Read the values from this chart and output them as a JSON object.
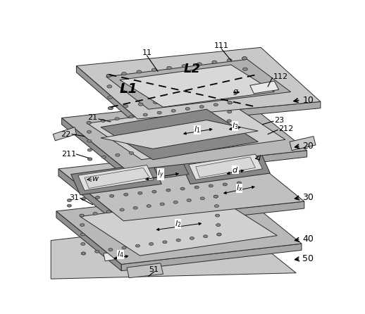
{
  "bg": "#ffffff",
  "c_light": "#d0d0d0",
  "c_med": "#b0b0b0",
  "c_dark": "#888888",
  "c_darker": "#666666",
  "c_edge": "#2a2a2a",
  "c_via": "#888888",
  "c_inner": "#c8c8c8",
  "c_slot": "#e8e8e8",
  "c_face": "#999999"
}
